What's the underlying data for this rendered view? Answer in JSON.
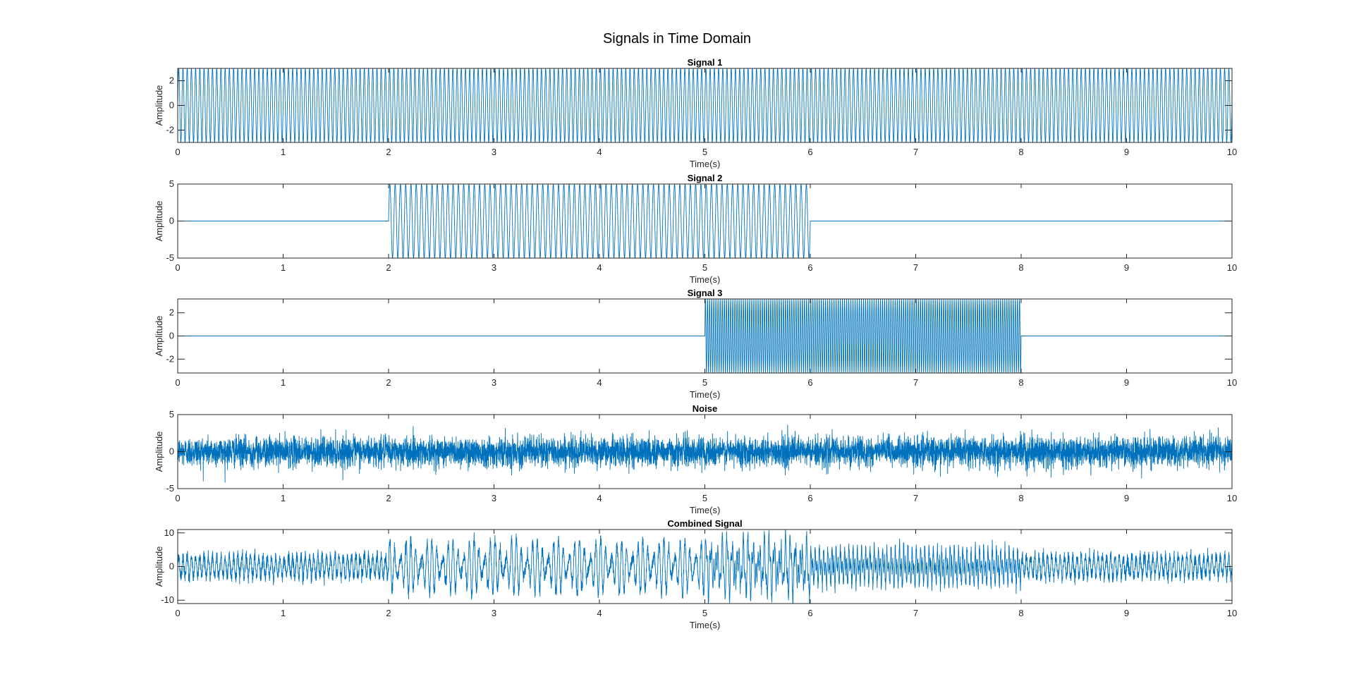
{
  "figure": {
    "title": "Signals in Time Domain"
  },
  "chart_data": [
    {
      "type": "line",
      "title": "Signal 1",
      "xlabel": "Time(s)",
      "ylabel": "Amplitude",
      "xlim": [
        0,
        10
      ],
      "ylim": [
        -3,
        3
      ],
      "xticks": [
        0,
        1,
        2,
        3,
        4,
        5,
        6,
        7,
        8,
        9,
        10
      ],
      "yticks": [
        -2,
        0,
        2
      ],
      "grid": false,
      "color": "#0072BD",
      "series": [
        {
          "segments": [
            {
              "start": 0,
              "end": 10,
              "amplitude": 3,
              "frequency_hz": 25,
              "waveform": "sine"
            }
          ]
        }
      ]
    },
    {
      "type": "line",
      "title": "Signal 2",
      "xlabel": "Time(s)",
      "ylabel": "Amplitude",
      "xlim": [
        0,
        10
      ],
      "ylim": [
        -5,
        5
      ],
      "xticks": [
        0,
        1,
        2,
        3,
        4,
        5,
        6,
        7,
        8,
        9,
        10
      ],
      "yticks": [
        -5,
        0,
        5
      ],
      "grid": false,
      "color": "#0072BD",
      "series": [
        {
          "segments": [
            {
              "start": 2,
              "end": 6,
              "amplitude": 5,
              "frequency_hz": 20,
              "waveform": "sine"
            }
          ]
        }
      ]
    },
    {
      "type": "line",
      "title": "Signal 3",
      "xlabel": "Time(s)",
      "ylabel": "Amplitude",
      "xlim": [
        0,
        10
      ],
      "ylim": [
        -3.2,
        3.2
      ],
      "xticks": [
        0,
        1,
        2,
        3,
        4,
        5,
        6,
        7,
        8,
        9,
        10
      ],
      "yticks": [
        -2,
        0,
        2
      ],
      "grid": false,
      "color": "#0072BD",
      "series": [
        {
          "segments": [
            {
              "start": 5,
              "end": 8,
              "amplitude": 3.2,
              "frequency_hz": 50,
              "waveform": "sine"
            }
          ]
        }
      ]
    },
    {
      "type": "line",
      "title": "Noise",
      "xlabel": "Time(s)",
      "ylabel": "Amplitude",
      "xlim": [
        0,
        10
      ],
      "ylim": [
        -5,
        5
      ],
      "xticks": [
        0,
        1,
        2,
        3,
        4,
        5,
        6,
        7,
        8,
        9,
        10
      ],
      "yticks": [
        -5,
        0,
        5
      ],
      "grid": false,
      "color": "#0072BD",
      "series": [
        {
          "segments": [
            {
              "start": 0,
              "end": 10,
              "noise_std": 1,
              "waveform": "gaussian-noise"
            }
          ]
        }
      ]
    },
    {
      "type": "line",
      "title": "Combined Signal",
      "xlabel": "Time(s)",
      "ylabel": "Amplitude",
      "xlim": [
        0,
        10
      ],
      "ylim": [
        -11,
        11
      ],
      "xticks": [
        0,
        1,
        2,
        3,
        4,
        5,
        6,
        7,
        8,
        9,
        10
      ],
      "yticks": [
        -10,
        0,
        10
      ],
      "grid": false,
      "color": "#0072BD",
      "series": [
        {
          "segments": [
            {
              "start": 0,
              "end": 10,
              "amplitude": 3,
              "frequency_hz": 25,
              "waveform": "sine"
            },
            {
              "start": 2,
              "end": 6,
              "amplitude": 5,
              "frequency_hz": 20,
              "waveform": "sine"
            },
            {
              "start": 5,
              "end": 8,
              "amplitude": 3.2,
              "frequency_hz": 50,
              "waveform": "sine"
            },
            {
              "start": 0,
              "end": 10,
              "noise_std": 1,
              "waveform": "gaussian-noise"
            }
          ]
        }
      ]
    }
  ]
}
